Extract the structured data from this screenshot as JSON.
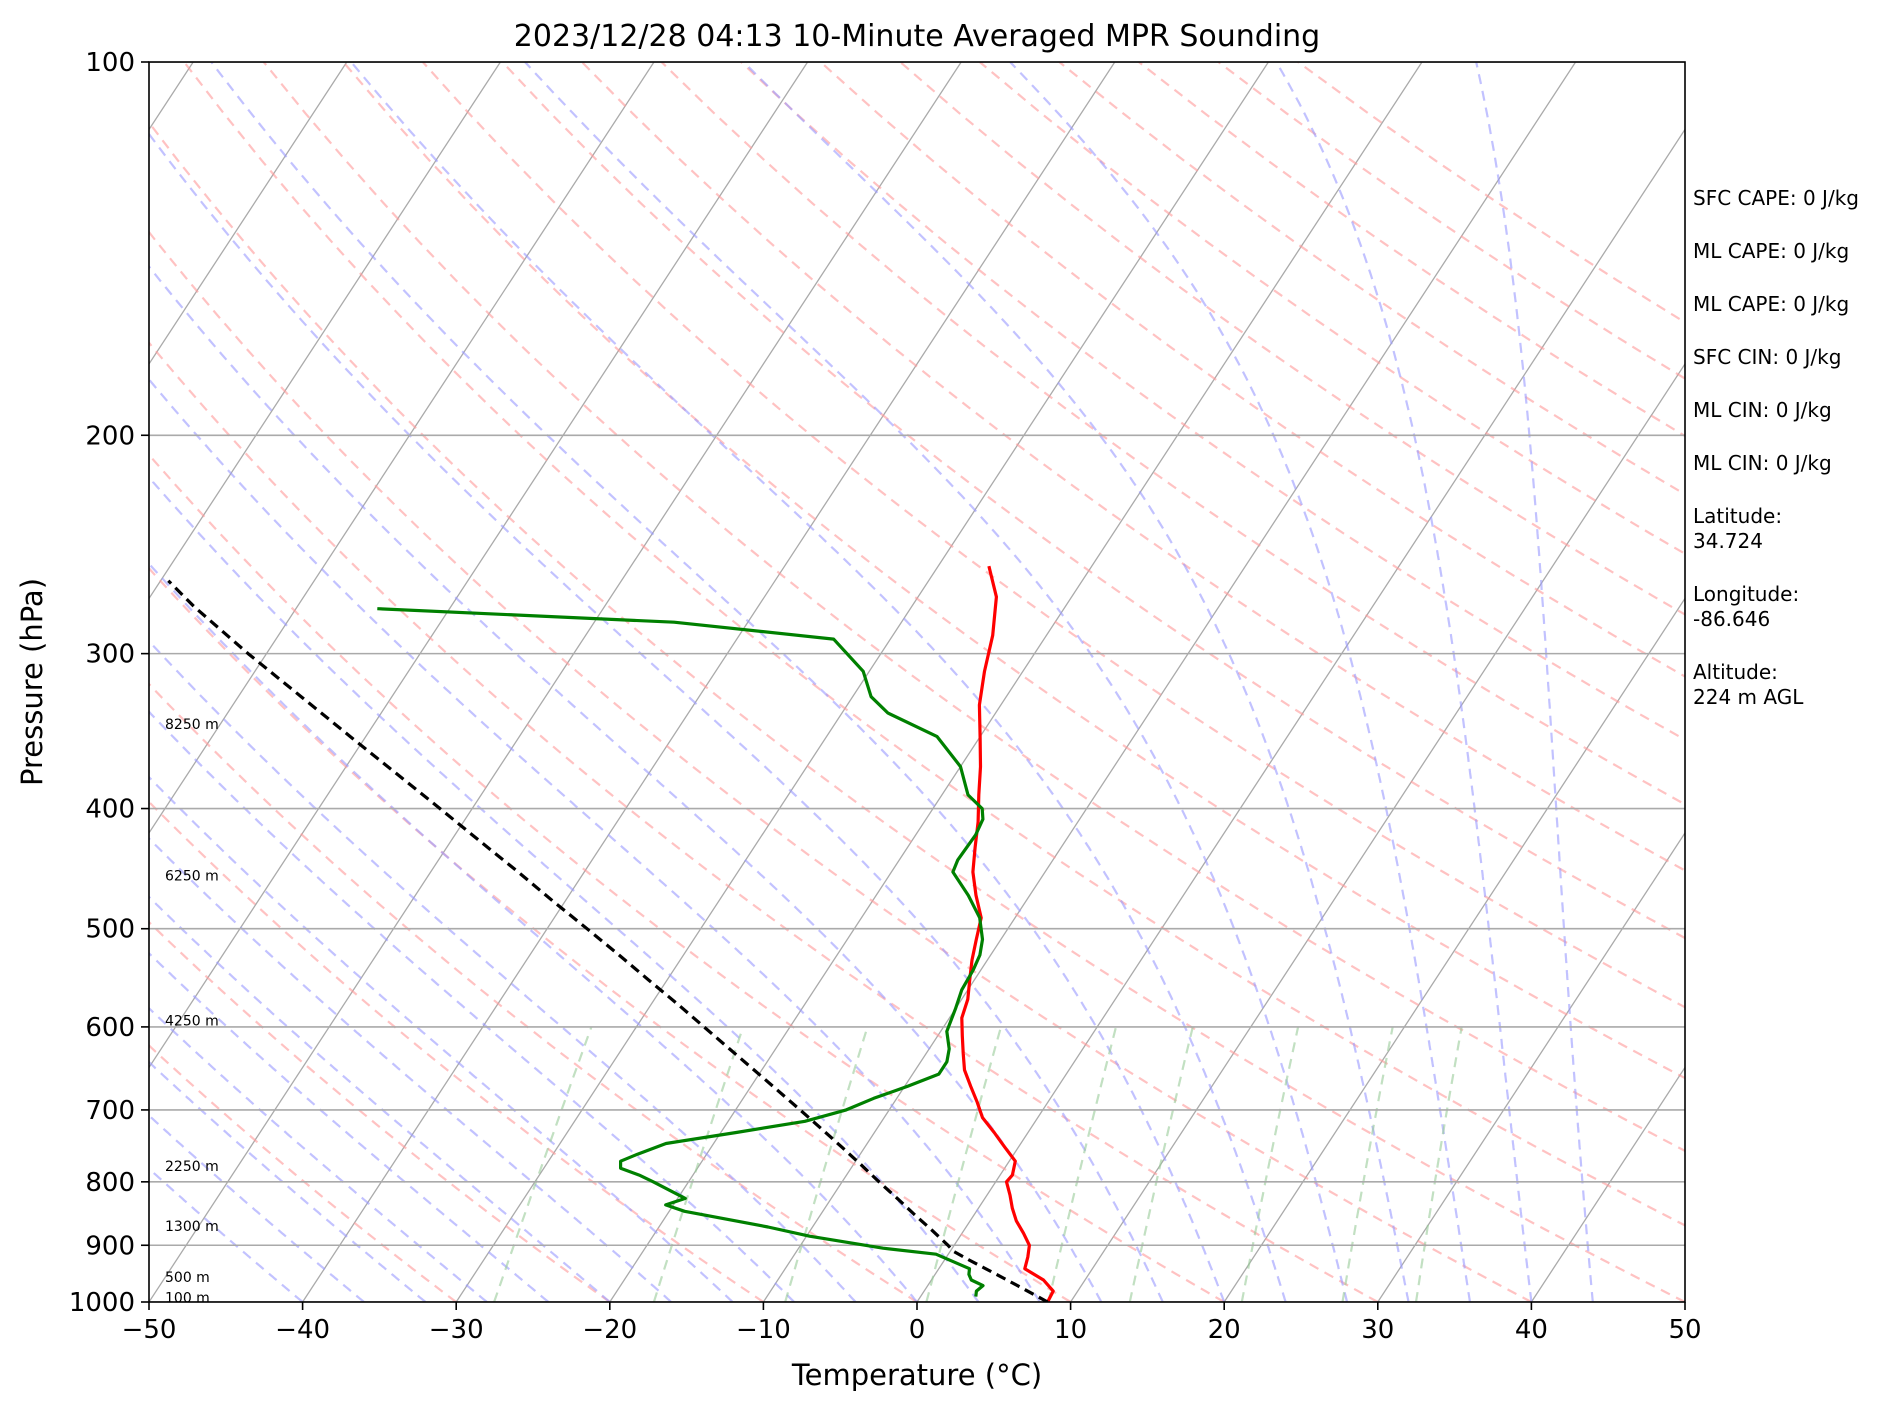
{
  "chart_data": {
    "type": "line",
    "chart_kind": "skew-T log-P sounding",
    "title": "2023/12/28 04:13 10-Minute Averaged MPR Sounding",
    "xlabel": "Temperature (°C)",
    "ylabel": "Pressure (hPa)",
    "xlim": [
      -50,
      50
    ],
    "ylim": [
      1000,
      100
    ],
    "yscale": "log",
    "x_ticks": [
      -50,
      -40,
      -30,
      -20,
      -10,
      0,
      10,
      20,
      30,
      40,
      50
    ],
    "x_tick_labels": [
      "−50",
      "−40",
      "−30",
      "−20",
      "−10",
      "0",
      "10",
      "20",
      "30",
      "40",
      "50"
    ],
    "y_ticks": [
      1000,
      900,
      800,
      700,
      600,
      500,
      400,
      300,
      200,
      100
    ],
    "y_tick_labels": [
      "1000",
      "900",
      "800",
      "700",
      "600",
      "500",
      "400",
      "300",
      "200",
      "100"
    ],
    "grid": true,
    "colors": {
      "temperature": "#ff0000",
      "dewpoint": "#008000",
      "parcel": "#000000",
      "isotherm": "#aaaaaa",
      "dry_adiabat": "#ff9999",
      "moist_adiabat": "#9999ff",
      "mixing_ratio": "#99cc99"
    },
    "series": [
      {
        "role": "temperature",
        "values": [
          [
            1000,
            8.5
          ],
          [
            980,
            8.4
          ],
          [
            960,
            7.3
          ],
          [
            940,
            5.6
          ],
          [
            920,
            5.3
          ],
          [
            900,
            4.9
          ],
          [
            880,
            4.0
          ],
          [
            860,
            3.0
          ],
          [
            840,
            2.2
          ],
          [
            820,
            1.5
          ],
          [
            800,
            0.7
          ],
          [
            790,
            0.8
          ],
          [
            770,
            0.4
          ],
          [
            750,
            -0.9
          ],
          [
            730,
            -2.2
          ],
          [
            710,
            -3.6
          ],
          [
            690,
            -4.6
          ],
          [
            670,
            -5.7
          ],
          [
            650,
            -6.8
          ],
          [
            630,
            -7.6
          ],
          [
            610,
            -8.4
          ],
          [
            590,
            -9.2
          ],
          [
            570,
            -9.6
          ],
          [
            550,
            -10.3
          ],
          [
            530,
            -11.0
          ],
          [
            510,
            -11.6
          ],
          [
            490,
            -12.2
          ],
          [
            470,
            -13.5
          ],
          [
            450,
            -14.7
          ],
          [
            430,
            -15.6
          ],
          [
            410,
            -16.5
          ],
          [
            390,
            -17.6
          ],
          [
            370,
            -18.7
          ],
          [
            350,
            -20.0
          ],
          [
            330,
            -21.4
          ],
          [
            310,
            -22.5
          ],
          [
            290,
            -23.5
          ],
          [
            270,
            -24.9
          ],
          [
            255,
            -26.7
          ]
        ]
      },
      {
        "role": "dewpoint",
        "values": [
          [
            990,
            3.6
          ],
          [
            980,
            3.4
          ],
          [
            970,
            3.6
          ],
          [
            960,
            2.6
          ],
          [
            950,
            2.2
          ],
          [
            940,
            2.0
          ],
          [
            915,
            -0.8
          ],
          [
            905,
            -4.5
          ],
          [
            885,
            -9.8
          ],
          [
            870,
            -12.9
          ],
          [
            845,
            -19.0
          ],
          [
            835,
            -20.5
          ],
          [
            825,
            -19.5
          ],
          [
            800,
            -22.3
          ],
          [
            790,
            -23.5
          ],
          [
            780,
            -25.0
          ],
          [
            770,
            -25.3
          ],
          [
            760,
            -24.5
          ],
          [
            745,
            -23.1
          ],
          [
            730,
            -19.0
          ],
          [
            715,
            -15.0
          ],
          [
            700,
            -12.8
          ],
          [
            685,
            -11.5
          ],
          [
            670,
            -9.8
          ],
          [
            655,
            -8.3
          ],
          [
            640,
            -8.3
          ],
          [
            625,
            -8.7
          ],
          [
            605,
            -9.6
          ],
          [
            580,
            -10.0
          ],
          [
            560,
            -10.4
          ],
          [
            540,
            -10.5
          ],
          [
            525,
            -10.7
          ],
          [
            510,
            -11.2
          ],
          [
            490,
            -12.3
          ],
          [
            470,
            -14.0
          ],
          [
            450,
            -16.0
          ],
          [
            440,
            -16.2
          ],
          [
            420,
            -16.1
          ],
          [
            408,
            -16.3
          ],
          [
            400,
            -16.8
          ],
          [
            390,
            -18.3
          ],
          [
            370,
            -20.0
          ],
          [
            350,
            -22.8
          ],
          [
            335,
            -27.0
          ],
          [
            325,
            -28.8
          ],
          [
            310,
            -30.4
          ],
          [
            292,
            -33.7
          ],
          [
            283,
            -44.8
          ],
          [
            276,
            -64.7
          ]
        ]
      },
      {
        "role": "parcel",
        "values": [
          [
            1000,
            8.5
          ],
          [
            975,
            6.3
          ],
          [
            950,
            4.0
          ],
          [
            925,
            1.6
          ],
          [
            910,
            0.2
          ],
          [
            900,
            -0.4
          ],
          [
            875,
            -2.1
          ],
          [
            850,
            -3.9
          ],
          [
            825,
            -5.7
          ],
          [
            800,
            -7.6
          ],
          [
            775,
            -9.5
          ],
          [
            750,
            -11.5
          ],
          [
            725,
            -13.6
          ],
          [
            700,
            -15.8
          ],
          [
            675,
            -18.1
          ],
          [
            650,
            -20.5
          ],
          [
            625,
            -23.0
          ],
          [
            600,
            -25.6
          ],
          [
            575,
            -28.3
          ],
          [
            550,
            -31.2
          ],
          [
            525,
            -34.2
          ],
          [
            500,
            -37.4
          ],
          [
            475,
            -40.8
          ],
          [
            450,
            -44.3
          ],
          [
            425,
            -48.1
          ],
          [
            400,
            -52.1
          ],
          [
            375,
            -56.4
          ],
          [
            350,
            -61.0
          ],
          [
            325,
            -65.9
          ],
          [
            300,
            -71.2
          ],
          [
            275,
            -76.7
          ],
          [
            262,
            -79.5
          ]
        ]
      }
    ],
    "height_labels": [
      {
        "p": 992,
        "text": "100 m"
      },
      {
        "p": 955,
        "text": "500 m"
      },
      {
        "p": 868,
        "text": "1300 m"
      },
      {
        "p": 777,
        "text": "2250 m"
      },
      {
        "p": 593,
        "text": "4250 m"
      },
      {
        "p": 453,
        "text": "6250 m"
      },
      {
        "p": 342,
        "text": "8250 m"
      }
    ]
  },
  "side_panel": [
    {
      "label": "SFC CAPE:",
      "value": "0 J/kg",
      "inline": true
    },
    {
      "label": "ML CAPE:",
      "value": "0 J/kg",
      "inline": true
    },
    {
      "label": "ML CAPE:",
      "value": "0 J/kg",
      "inline": true
    },
    {
      "label": "SFC CIN:",
      "value": "0 J/kg",
      "inline": true
    },
    {
      "label": "ML CIN:",
      "value": "0 J/kg",
      "inline": true
    },
    {
      "label": "ML CIN:",
      "value": "0 J/kg",
      "inline": true
    },
    {
      "label": "Latitude:",
      "value": "34.724",
      "inline": false
    },
    {
      "label": "Longitude:",
      "value": "-86.646",
      "inline": false
    },
    {
      "label": "Altitude:",
      "value": "224 m AGL",
      "inline": false
    }
  ]
}
